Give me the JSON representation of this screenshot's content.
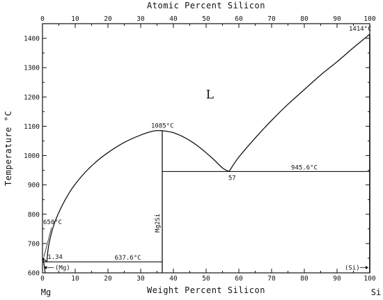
{
  "chart_data": {
    "type": "line",
    "title": "",
    "xlabel": "Weight Percent Silicon",
    "x2label": "Atomic Percent Silicon",
    "ylabel": "Temperature °C",
    "xlim": [
      0,
      100
    ],
    "ylim": [
      600,
      1450
    ],
    "grid": false,
    "x_ticks": [
      0,
      10,
      20,
      30,
      40,
      50,
      60,
      70,
      80,
      90,
      100
    ],
    "x_tick_labels": [
      "0",
      "10",
      "20",
      "30",
      "40",
      "50",
      "60",
      "70",
      "80",
      "90",
      "100"
    ],
    "y_ticks": [
      600,
      700,
      800,
      900,
      1000,
      1100,
      1200,
      1300,
      1400
    ],
    "y_tick_labels": [
      "600",
      "700",
      "800",
      "900",
      "1000",
      "1100",
      "1200",
      "1300",
      "1400"
    ],
    "x2_ticks": [
      0,
      10,
      20,
      30,
      40,
      50,
      60,
      70,
      80,
      90,
      100
    ],
    "x2_tick_labels": [
      "0",
      "10",
      "20",
      "30",
      "40",
      "50",
      "60",
      "70",
      "80",
      "90",
      "100"
    ],
    "endpoint_left": "Mg",
    "endpoint_right": "Si",
    "series": [
      {
        "values": [
          [
            1.34,
            637.6
          ],
          [
            2,
            700
          ],
          [
            4,
            780
          ],
          [
            8,
            870
          ],
          [
            12,
            930
          ],
          [
            16,
            975
          ],
          [
            20,
            1010
          ],
          [
            25,
            1045
          ],
          [
            30,
            1070
          ],
          [
            34,
            1084
          ],
          [
            36.6,
            1085
          ]
        ]
      },
      {
        "values": [
          [
            36.6,
            1085
          ],
          [
            40,
            1078
          ],
          [
            44,
            1058
          ],
          [
            48,
            1028
          ],
          [
            52,
            990
          ],
          [
            55,
            958
          ],
          [
            57,
            945.6
          ]
        ]
      },
      {
        "values": [
          [
            57,
            945.6
          ],
          [
            60,
            995
          ],
          [
            65,
            1060
          ],
          [
            70,
            1120
          ],
          [
            75,
            1175
          ],
          [
            80,
            1225
          ],
          [
            85,
            1275
          ],
          [
            90,
            1320
          ],
          [
            95,
            1368
          ],
          [
            100,
            1414
          ]
        ]
      },
      {
        "values": [
          [
            0,
            650
          ],
          [
            1.34,
            637.6
          ]
        ]
      },
      {
        "values": [
          [
            0,
            650
          ],
          [
            0.3,
            640
          ],
          [
            0.6,
            620
          ],
          [
            0.8,
            600
          ]
        ]
      }
    ],
    "invariant_lines": [
      {
        "x": [
          0,
          36.6
        ],
        "y": 637.6,
        "label": "637.6°C"
      },
      {
        "x": [
          36.6,
          100
        ],
        "y": 945.6,
        "label": "945.6°C"
      }
    ],
    "phase_lines": [
      {
        "x": 36.6,
        "y": [
          600,
          1085
        ],
        "label": "Mg2Si"
      },
      {
        "x": 100,
        "y": [
          600,
          1414
        ]
      }
    ],
    "annotations": [
      {
        "text": "L",
        "x": 51,
        "y": 1195
      },
      {
        "text": "1085°C",
        "x": 36.6,
        "y": 1085
      },
      {
        "text": "1414°C",
        "x": 100,
        "y": 1414
      },
      {
        "text": "650°C",
        "x": 0,
        "y": 650
      },
      {
        "text": "1.34",
        "x": 1.34,
        "y": 637.6
      },
      {
        "text": "57",
        "x": 57,
        "y": 945.6
      },
      {
        "text": "(Mg)",
        "x": 0,
        "y": 618
      },
      {
        "text": "(Si)",
        "x": 100,
        "y": 618
      }
    ]
  }
}
